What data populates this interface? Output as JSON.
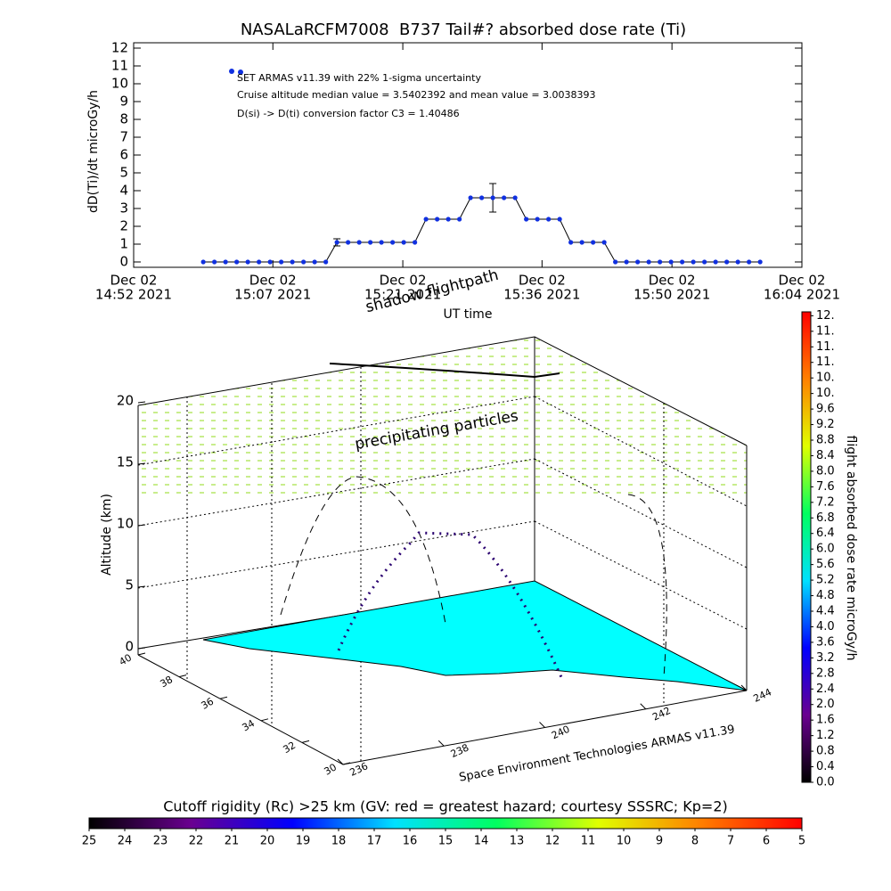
{
  "chart_data": [
    {
      "type": "line",
      "title": "NASALaRCFM7008  B737 Tail#? absorbed dose rate (Ti)",
      "ylabel": "dD(Ti)/dt microGy/h",
      "xlabel": "UT time",
      "ylim": [
        -0.3,
        12.3
      ],
      "yticks": [
        0,
        1,
        2,
        3,
        4,
        5,
        6,
        7,
        8,
        9,
        10,
        11,
        12
      ],
      "xlim": [
        "14:52",
        "16:04"
      ],
      "xticks": [
        {
          "value": "14:52",
          "label": [
            "Dec 02",
            "14:52 2021"
          ]
        },
        {
          "value": "15:07",
          "label": [
            "Dec 02",
            "15:07 2021"
          ]
        },
        {
          "value": "15:21",
          "label": [
            "Dec 02",
            "15:21 2021"
          ]
        },
        {
          "value": "15:36",
          "label": [
            "Dec 02",
            "15:36 2021"
          ]
        },
        {
          "value": "15:50",
          "label": [
            "Dec 02",
            "15:50 2021"
          ]
        },
        {
          "value": "16:04",
          "label": [
            "Dec 02",
            "16:04 2021"
          ]
        }
      ],
      "annotations": [
        "SET ARMAS v11.39 with 22% 1-sigma uncertainty",
        "Cruise altitude median value = 3.5402392 and mean value = 3.0038393",
        "D(si) -> D(ti) conversion factor C3 = 1.40486"
      ],
      "series": [
        {
          "color": "#1030e0",
          "x": [
            "14:59:30",
            "15:00:42",
            "15:01:54",
            "15:03:06",
            "15:04:18",
            "15:05:30",
            "15:06:42",
            "15:07:54",
            "15:09:06",
            "15:10:18",
            "15:11:30",
            "15:12:42",
            "15:13:54",
            "15:15:06",
            "15:16:18",
            "15:17:30",
            "15:18:42",
            "15:19:54",
            "15:21:06",
            "15:22:18",
            "15:23:30",
            "15:24:42",
            "15:25:54",
            "15:27:06",
            "15:28:18",
            "15:29:30",
            "15:30:42",
            "15:31:54",
            "15:33:06",
            "15:34:18",
            "15:35:30",
            "15:36:42",
            "15:37:54",
            "15:39:06",
            "15:40:18",
            "15:41:30",
            "15:42:42",
            "15:43:54",
            "15:45:06",
            "15:46:18",
            "15:47:30",
            "15:48:42",
            "15:49:54",
            "15:51:06",
            "15:52:18",
            "15:53:30",
            "15:54:42",
            "15:55:54",
            "15:57:06",
            "15:58:18",
            "15:59:30"
          ],
          "values": [
            0,
            0,
            0,
            0,
            0,
            0,
            0,
            0,
            0,
            0,
            0,
            0,
            1.1,
            1.1,
            1.1,
            1.1,
            1.1,
            1.1,
            1.1,
            1.1,
            2.4,
            2.4,
            2.4,
            2.4,
            3.6,
            3.6,
            3.6,
            3.6,
            3.6,
            2.4,
            2.4,
            2.4,
            2.4,
            1.1,
            1.1,
            1.1,
            1.1,
            0,
            0,
            0,
            0,
            0,
            0,
            0,
            0,
            0,
            0,
            0,
            0,
            0,
            0
          ],
          "errors": [
            null,
            null,
            null,
            null,
            null,
            null,
            null,
            null,
            null,
            null,
            null,
            null,
            0.2,
            null,
            null,
            null,
            null,
            null,
            null,
            null,
            null,
            null,
            null,
            null,
            null,
            null,
            0.8,
            null,
            null,
            null,
            null,
            null,
            null,
            null,
            null,
            null,
            null,
            null,
            null,
            null,
            null,
            null,
            null,
            null,
            null,
            null,
            null,
            null,
            null,
            null,
            null
          ]
        }
      ]
    },
    {
      "type": "surface3d",
      "zlabel": "Altitude (km)",
      "zticks": [
        0,
        5,
        10,
        15,
        20
      ],
      "yticks": [
        30,
        32,
        34,
        36,
        38,
        40
      ],
      "xticks": [
        236,
        238,
        240,
        242,
        244
      ],
      "annotations": [
        "shadow flightpath",
        "precipitating particles"
      ],
      "credit": "Space Environment Technologies ARMAS v11.39"
    },
    {
      "type": "colorbar",
      "orientation": "vertical",
      "label": "flight absorbed dose rate microGy/h",
      "lim": [
        0,
        12.1
      ],
      "colors": [
        "#000000",
        "#6a0090",
        "#0000ff",
        "#00e0ff",
        "#00ff60",
        "#e0ff00",
        "#ff8000",
        "#ff0000"
      ],
      "ticks": [
        {
          "value": 0,
          "label": "0.0"
        },
        {
          "value": 0.4,
          "label": "0.4"
        },
        {
          "value": 0.8,
          "label": "0.8"
        },
        {
          "value": 1.2,
          "label": "1.2"
        },
        {
          "value": 1.6,
          "label": "1.6"
        },
        {
          "value": 2,
          "label": "2.0"
        },
        {
          "value": 2.4,
          "label": "2.4"
        },
        {
          "value": 2.8,
          "label": "2.8"
        },
        {
          "value": 3.2,
          "label": "3.2"
        },
        {
          "value": 3.6,
          "label": "3.6"
        },
        {
          "value": 4,
          "label": "4.0"
        },
        {
          "value": 4.4,
          "label": "4.4"
        },
        {
          "value": 4.8,
          "label": "4.8"
        },
        {
          "value": 5.2,
          "label": "5.2"
        },
        {
          "value": 5.6,
          "label": "5.6"
        },
        {
          "value": 6,
          "label": "6.0"
        },
        {
          "value": 6.4,
          "label": "6.4"
        },
        {
          "value": 6.8,
          "label": "6.8"
        },
        {
          "value": 7.2,
          "label": "7.2"
        },
        {
          "value": 7.6,
          "label": "7.6"
        },
        {
          "value": 8,
          "label": "8.0"
        },
        {
          "value": 8.4,
          "label": "8.4"
        },
        {
          "value": 8.8,
          "label": "8.8"
        },
        {
          "value": 9.2,
          "label": "9.2"
        },
        {
          "value": 9.6,
          "label": "9.6"
        },
        {
          "value": 10,
          "label": "10."
        },
        {
          "value": 10.4,
          "label": "10."
        },
        {
          "value": 10.8,
          "label": "11."
        },
        {
          "value": 11.2,
          "label": "11."
        },
        {
          "value": 11.6,
          "label": "11."
        },
        {
          "value": 12,
          "label": "12."
        }
      ]
    },
    {
      "type": "colorbar",
      "orientation": "horizontal",
      "label": "Cutoff rigidity (Rc) >25 km (GV: red = greatest hazard; courtesy SSSRC; Kp=2)",
      "lim": [
        25,
        5
      ],
      "colors": [
        "#000000",
        "#6a0090",
        "#0000ff",
        "#00e0ff",
        "#00ff60",
        "#e0ff00",
        "#ff8000",
        "#ff0000"
      ],
      "ticks": [
        25,
        24,
        23,
        22,
        21,
        20,
        19,
        18,
        17,
        16,
        15,
        14,
        13,
        12,
        11,
        10,
        9,
        8,
        7,
        6,
        5
      ]
    }
  ]
}
